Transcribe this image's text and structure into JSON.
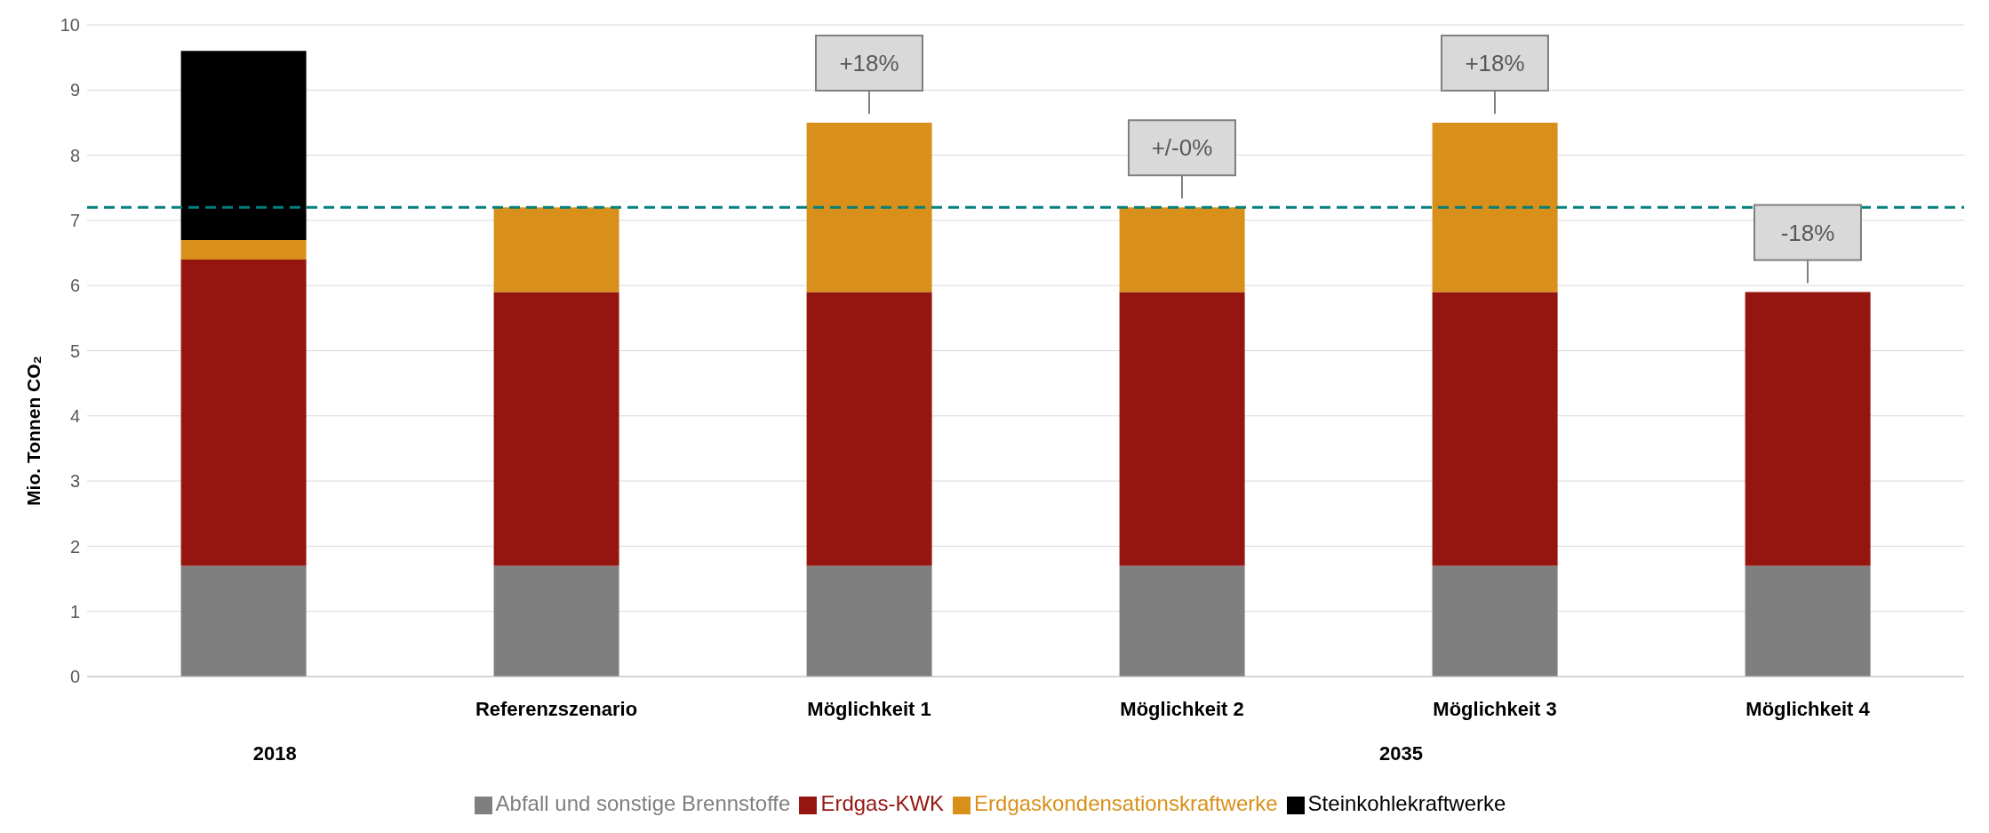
{
  "chart_data": {
    "type": "bar",
    "stacked": true,
    "ylabel": "Mio. Tonnen CO₂",
    "categories": [
      null,
      "Referenzszenario",
      "Möglichkeit 1",
      "Möglichkeit 2",
      "Möglichkeit 3",
      "Möglichkeit 4"
    ],
    "series": [
      {
        "name": "Abfall und sonstige Brennstoffe",
        "color": "#7f7f7f",
        "values": [
          1.7,
          1.7,
          1.7,
          1.7,
          1.7,
          1.7
        ]
      },
      {
        "name": "Erdgas-KWK",
        "color": "#951510",
        "values": [
          4.7,
          4.2,
          4.2,
          4.2,
          4.2,
          4.2
        ]
      },
      {
        "name": "Erdgaskondensationskraftwerke",
        "color": "#d9901a",
        "values": [
          0.3,
          1.3,
          2.6,
          1.3,
          2.6,
          null
        ]
      },
      {
        "name": "Steinkohlekraftwerke",
        "color": "#000000",
        "values": [
          2.9,
          null,
          null,
          null,
          null,
          null
        ]
      }
    ],
    "ylim": [
      0,
      10
    ],
    "yticks": [
      0,
      1,
      2,
      3,
      4,
      5,
      6,
      7,
      8,
      9,
      10
    ],
    "grid": "y",
    "legend": "bottom",
    "ref_lines": [
      {
        "axis": "y",
        "value": 7.2,
        "color": "#00807a",
        "line_style": "dashed"
      }
    ],
    "annotations": [
      "2018",
      "2035",
      {
        "text": "+18%",
        "x": "Möglichkeit 1",
        "y": 8.5
      },
      {
        "text": "+/-0%",
        "x": "Möglichkeit 2",
        "y": 7.2
      },
      {
        "text": "+18%",
        "x": "Möglichkeit 3",
        "y": 8.5
      },
      {
        "text": "-18%",
        "x": "Möglichkeit 4",
        "y": 5.9
      }
    ]
  }
}
